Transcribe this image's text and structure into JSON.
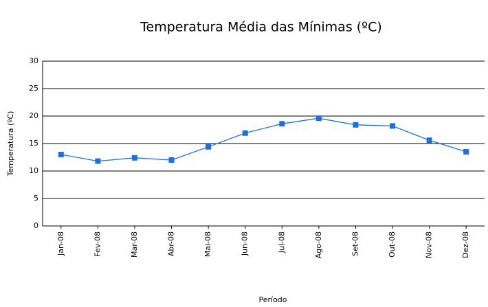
{
  "chart_data": {
    "type": "line",
    "title": "Temperatura Média das  Mínimas (ºC)",
    "x_label": "Período",
    "y_label": "Temperatura (ºC)",
    "categories": [
      "Jan-08",
      "Fev-08",
      "Mar-08",
      "Abr-08",
      "Mai-08",
      "Jun-08",
      "Jul-08",
      "Ago-08",
      "Set-08",
      "Out-08",
      "Nov-08",
      "Dez-08"
    ],
    "series": [
      {
        "name": "Temperatura",
        "color": "#1f6fdc",
        "values": [
          13.0,
          11.8,
          12.4,
          12.0,
          14.4,
          16.9,
          18.6,
          19.6,
          18.4,
          18.2,
          15.6,
          13.5
        ]
      }
    ],
    "ylim": [
      0,
      30
    ],
    "yticks": [
      0,
      5,
      10,
      15,
      20,
      25,
      30
    ],
    "grid": true
  }
}
